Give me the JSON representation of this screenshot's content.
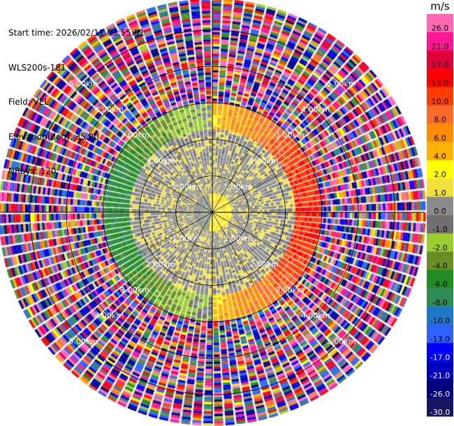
{
  "header": {
    "start_time": "Start time: 2026/02/11 03:55:51",
    "station": "WLS200s-181",
    "field": "Field: VEL",
    "elevation": "Elevation(deg): 35.00",
    "nrays": "NRays: 120"
  },
  "chart_data": {
    "type": "heatmap",
    "projection": "polar-ppi",
    "field": "VEL",
    "units": "m/s",
    "n_rays": 120,
    "elevation_deg": 35.0,
    "range_km": [
      0,
      5.8
    ],
    "range_ring_labels": [
      "1.00km",
      "2.00km",
      "3.00km",
      "4.00km",
      "5.00km"
    ],
    "near_field": {
      "positive_side": "east",
      "inner_core_value": 1.8,
      "mid_ring_value": -0.3,
      "outer_value_range": [
        -8.0,
        10.0
      ]
    },
    "colorbar": {
      "label": "m/s",
      "ticks": [
        "26.0",
        "21.0",
        "17.0",
        "13.0",
        "10.0",
        "8.0",
        "6.0",
        "4.0",
        "2.0",
        "1.0",
        "0.0",
        "-1.0",
        "-2.0",
        "-4.0",
        "-6.0",
        "-8.0",
        "-10.0",
        "-13.0",
        "-17.0",
        "-21.0",
        "-26.0",
        "-30.0"
      ],
      "colors": [
        "#ff69b4",
        "#ff1493",
        "#e0003a",
        "#ff0000",
        "#ff3b00",
        "#ff6a2a",
        "#ff8c00",
        "#ffb000",
        "#ffff00",
        "#f2e03a",
        "#8c8c8c",
        "#707070",
        "#9acd32",
        "#6b8e23",
        "#228b22",
        "#2e8b57",
        "#1e78c8",
        "#3060ff",
        "#0000ff",
        "#0000c0",
        "#000080",
        "#161660"
      ]
    }
  }
}
